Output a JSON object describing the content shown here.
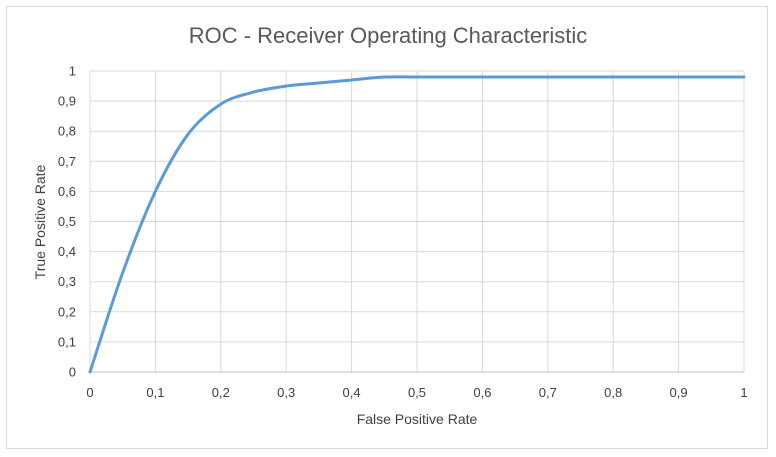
{
  "chart_data": {
    "type": "line",
    "title": "ROC - Receiver Operating Characteristic",
    "xlabel": "False Positive Rate",
    "ylabel": "True Positive Rate",
    "xlim": [
      0,
      1
    ],
    "ylim": [
      0,
      1
    ],
    "x_ticks": [
      "0",
      "0,1",
      "0,2",
      "0,3",
      "0,4",
      "0,5",
      "0,6",
      "0,7",
      "0,8",
      "0,9",
      "1"
    ],
    "y_ticks": [
      "0",
      "0,1",
      "0,2",
      "0,3",
      "0,4",
      "0,5",
      "0,6",
      "0,7",
      "0,8",
      "0,9",
      "1"
    ],
    "grid": true,
    "legend": "none",
    "series": [
      {
        "color": "#5B9BD5",
        "x": [
          0,
          0.05,
          0.1,
          0.15,
          0.2,
          0.25,
          0.3,
          0.35,
          0.4,
          0.45,
          0.5,
          0.55,
          0.6,
          0.7,
          0.8,
          0.9,
          1.0
        ],
        "y": [
          0,
          0.33,
          0.6,
          0.79,
          0.89,
          0.93,
          0.95,
          0.96,
          0.97,
          0.98,
          0.98,
          0.98,
          0.98,
          0.98,
          0.98,
          0.98,
          0.98
        ]
      }
    ]
  }
}
